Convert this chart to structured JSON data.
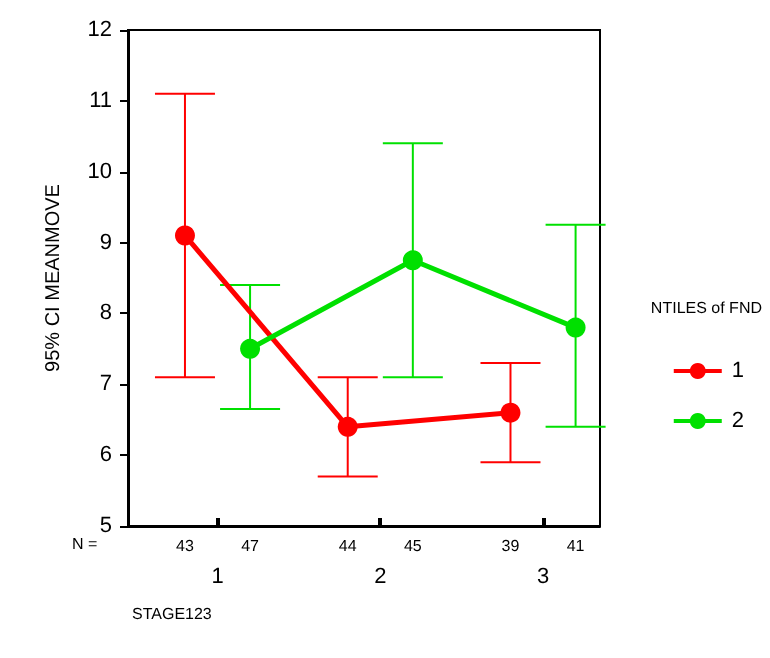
{
  "chart_data": {
    "type": "line",
    "xlabel": "STAGE123",
    "ylabel": "95% CI MEANMOVE",
    "legend_title": "NTILES of FND",
    "legend": "right",
    "grid": false,
    "marker": "circle",
    "line_style": "solid",
    "xlim": [
      0.45,
      3.35
    ],
    "xticks": [
      1,
      2,
      3
    ],
    "ylim": [
      5,
      12
    ],
    "yticks": [
      5,
      6,
      7,
      8,
      9,
      10,
      11,
      12
    ],
    "series": [
      {
        "name": "1",
        "color": "#ff0000",
        "x": [
          0.8,
          1.8,
          2.8
        ],
        "values": [
          9.1,
          6.4,
          6.6
        ],
        "errors": [
          [
            7.1,
            11.1
          ],
          [
            5.7,
            7.1
          ],
          [
            5.9,
            7.3
          ]
        ]
      },
      {
        "name": "2",
        "color": "#00e000",
        "x": [
          1.2,
          2.2,
          3.2
        ],
        "values": [
          7.5,
          8.75,
          7.8
        ],
        "errors": [
          [
            6.65,
            8.4
          ],
          [
            7.1,
            10.4
          ],
          [
            6.4,
            9.25
          ]
        ]
      }
    ],
    "annotations": [
      "N =",
      "43",
      "47",
      "44",
      "45",
      "39",
      "41"
    ]
  }
}
